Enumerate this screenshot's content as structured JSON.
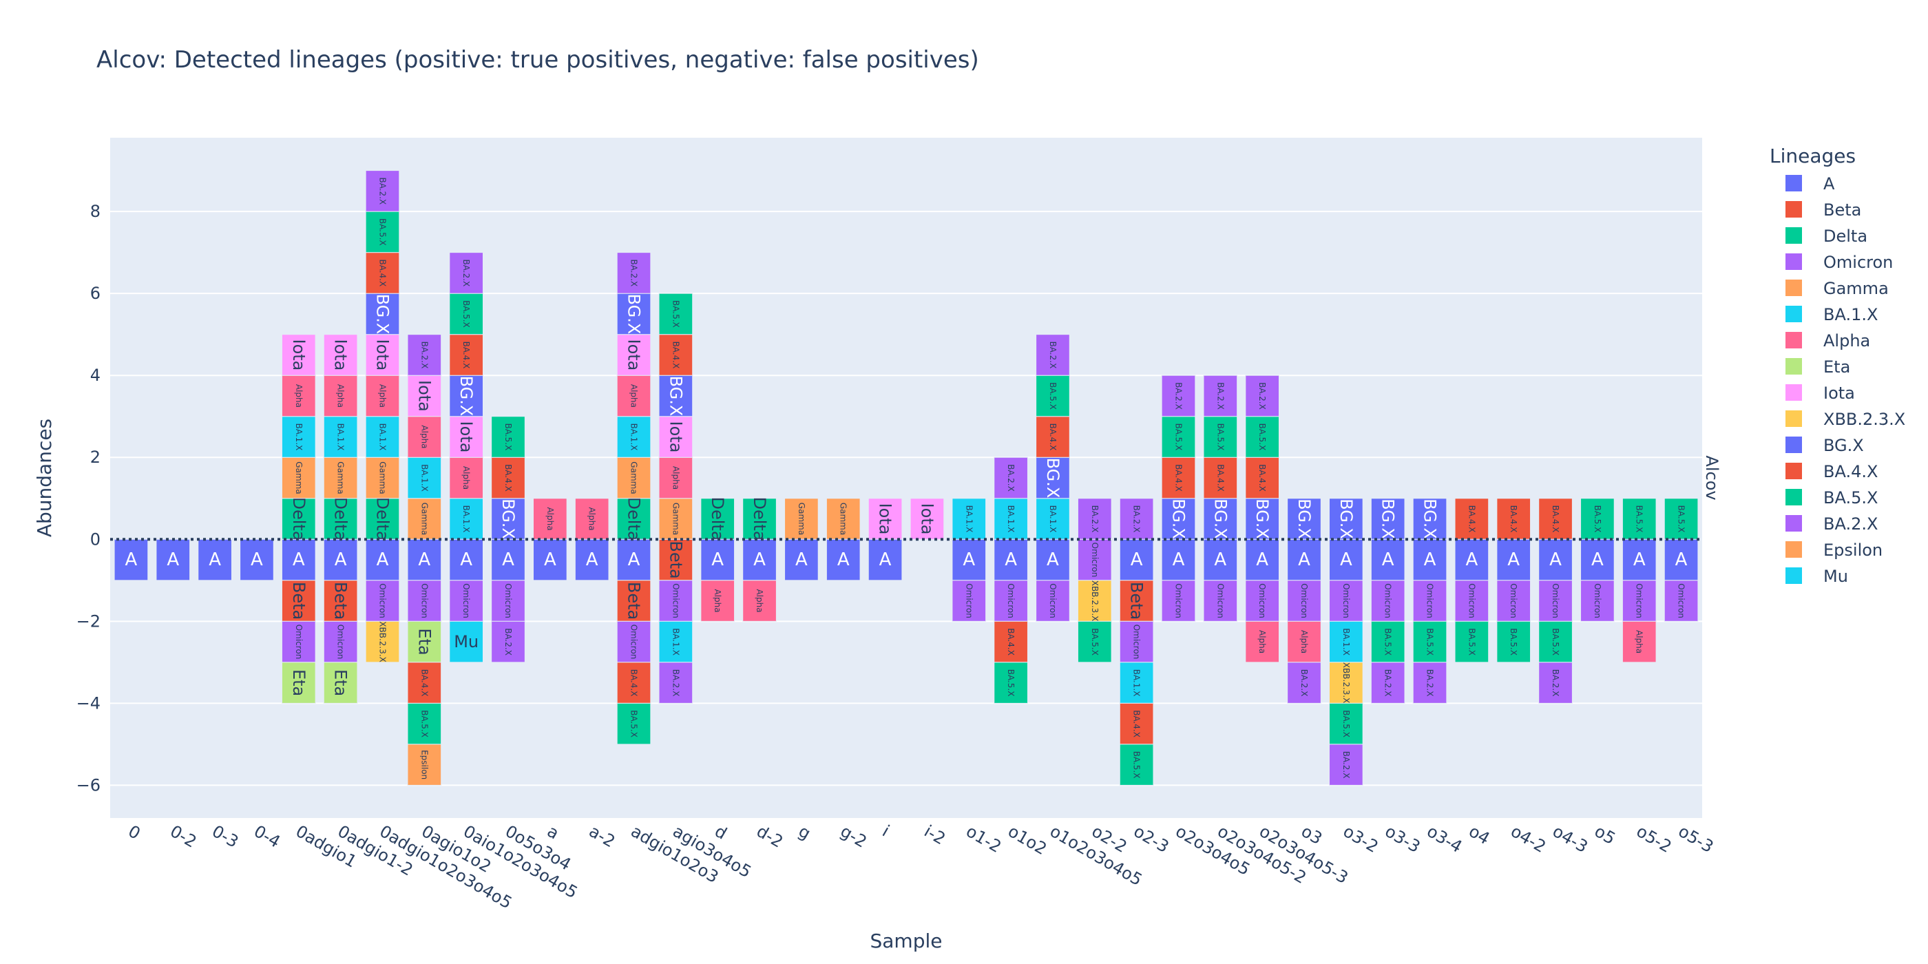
{
  "chart_data": {
    "type": "bar",
    "title": "Alcov: Detected lineages (positive: true positives, negative: false positives)",
    "xlabel": "Sample",
    "ylabel": "Abundances",
    "facet_label": "Alcov",
    "ylim": [
      -6.8,
      9.8
    ],
    "yticks": [
      -6,
      -4,
      -2,
      0,
      2,
      4,
      6,
      8
    ],
    "legend_title": "Lineages",
    "legend_placement": "right",
    "grid": true,
    "legend": [
      {
        "name": "A",
        "color": "#636efa"
      },
      {
        "name": "Beta",
        "color": "#EF553B"
      },
      {
        "name": "Delta",
        "color": "#00cc96"
      },
      {
        "name": "Omicron",
        "color": "#ab63fa"
      },
      {
        "name": "Gamma",
        "color": "#FFA15A"
      },
      {
        "name": "BA.1.X",
        "color": "#19d3f3"
      },
      {
        "name": "Alpha",
        "color": "#FF6692"
      },
      {
        "name": "Eta",
        "color": "#B6E880"
      },
      {
        "name": "Iota",
        "color": "#FF97FF"
      },
      {
        "name": "XBB.2.3.X",
        "color": "#FECB52"
      },
      {
        "name": "BG.X",
        "color": "#636efa"
      },
      {
        "name": "BA.4.X",
        "color": "#EF553B"
      },
      {
        "name": "BA.5.X",
        "color": "#00cc96"
      },
      {
        "name": "BA.2.X",
        "color": "#ab63fa"
      },
      {
        "name": "Epsilon",
        "color": "#FFA15A"
      },
      {
        "name": "Mu",
        "color": "#19d3f3"
      }
    ],
    "samples": [
      {
        "name": "0",
        "pos": [],
        "neg": [
          "A"
        ]
      },
      {
        "name": "0-2",
        "pos": [],
        "neg": [
          "A"
        ]
      },
      {
        "name": "0-3",
        "pos": [],
        "neg": [
          "A"
        ]
      },
      {
        "name": "0-4",
        "pos": [],
        "neg": [
          "A"
        ]
      },
      {
        "name": "0adgio1",
        "pos": [
          "Delta",
          "Gamma",
          "BA.1.X",
          "Alpha",
          "Iota"
        ],
        "neg": [
          "A",
          "Beta",
          "Omicron",
          "Eta"
        ]
      },
      {
        "name": "0adgio1-2",
        "pos": [
          "Delta",
          "Gamma",
          "BA.1.X",
          "Alpha",
          "Iota"
        ],
        "neg": [
          "A",
          "Beta",
          "Omicron",
          "Eta"
        ]
      },
      {
        "name": "0adgio1o2o3o4o5",
        "pos": [
          "Delta",
          "Gamma",
          "BA.1.X",
          "Alpha",
          "Iota",
          "BG.X",
          "BA.4.X",
          "BA.5.X",
          "BA.2.X"
        ],
        "neg": [
          "A",
          "Omicron",
          "XBB.2.3.X"
        ]
      },
      {
        "name": "0agio1o2",
        "pos": [
          "Gamma",
          "BA.1.X",
          "Alpha",
          "Iota",
          "BA.2.X"
        ],
        "neg": [
          "A",
          "Omicron",
          "Eta",
          "BA.4.X",
          "BA.5.X",
          "Epsilon"
        ]
      },
      {
        "name": "0aio1o2o3o4o5",
        "pos": [
          "BA.1.X",
          "Alpha",
          "Iota",
          "BG.X",
          "BA.4.X",
          "BA.5.X",
          "BA.2.X"
        ],
        "neg": [
          "A",
          "Omicron",
          "Mu"
        ]
      },
      {
        "name": "0o5o3o4",
        "pos": [
          "BG.X",
          "BA.4.X",
          "BA.5.X"
        ],
        "neg": [
          "A",
          "Omicron",
          "BA.2.X"
        ]
      },
      {
        "name": "a",
        "pos": [
          "Alpha"
        ],
        "neg": [
          "A"
        ]
      },
      {
        "name": "a-2",
        "pos": [
          "Alpha"
        ],
        "neg": [
          "A"
        ]
      },
      {
        "name": "adgio1o2o3",
        "pos": [
          "Delta",
          "Gamma",
          "BA.1.X",
          "Alpha",
          "Iota",
          "BG.X",
          "BA.2.X"
        ],
        "neg": [
          "A",
          "Beta",
          "Omicron",
          "BA.4.X",
          "BA.5.X"
        ]
      },
      {
        "name": "agio3o4o5",
        "pos": [
          "Gamma",
          "Alpha",
          "Iota",
          "BG.X",
          "BA.4.X",
          "BA.5.X"
        ],
        "neg": [
          "Beta",
          "Omicron",
          "BA.1.X",
          "BA.2.X"
        ]
      },
      {
        "name": "d",
        "pos": [
          "Delta"
        ],
        "neg": [
          "A",
          "Alpha"
        ]
      },
      {
        "name": "d-2",
        "pos": [
          "Delta"
        ],
        "neg": [
          "A",
          "Alpha"
        ]
      },
      {
        "name": "g",
        "pos": [
          "Gamma"
        ],
        "neg": [
          "A"
        ]
      },
      {
        "name": "g-2",
        "pos": [
          "Gamma"
        ],
        "neg": [
          "A"
        ]
      },
      {
        "name": "i",
        "pos": [
          "Iota"
        ],
        "neg": [
          "A"
        ]
      },
      {
        "name": "i-2",
        "pos": [
          "Iota"
        ],
        "neg": []
      },
      {
        "name": "o1-2",
        "pos": [
          "BA.1.X"
        ],
        "neg": [
          "A",
          "Omicron"
        ]
      },
      {
        "name": "o1o2",
        "pos": [
          "BA.1.X",
          "BA.2.X"
        ],
        "neg": [
          "A",
          "Omicron",
          "BA.4.X",
          "BA.5.X"
        ]
      },
      {
        "name": "o1o2o3o4o5",
        "pos": [
          "BA.1.X",
          "BG.X",
          "BA.4.X",
          "BA.5.X",
          "BA.2.X"
        ],
        "neg": [
          "A",
          "Omicron"
        ]
      },
      {
        "name": "o2-2",
        "pos": [
          "BA.2.X"
        ],
        "neg": [
          "Omicron",
          "XBB.2.3.X",
          "BA.5.X"
        ]
      },
      {
        "name": "o2-3",
        "pos": [
          "BA.2.X"
        ],
        "neg": [
          "A",
          "Beta",
          "Omicron",
          "BA.1.X",
          "BA.4.X",
          "BA.5.X"
        ]
      },
      {
        "name": "o2o3o4o5",
        "pos": [
          "BG.X",
          "BA.4.X",
          "BA.5.X",
          "BA.2.X"
        ],
        "neg": [
          "A",
          "Omicron"
        ]
      },
      {
        "name": "o2o3o4o5-2",
        "pos": [
          "BG.X",
          "BA.4.X",
          "BA.5.X",
          "BA.2.X"
        ],
        "neg": [
          "A",
          "Omicron"
        ]
      },
      {
        "name": "o2o3o4o5-3",
        "pos": [
          "BG.X",
          "BA.4.X",
          "BA.5.X",
          "BA.2.X"
        ],
        "neg": [
          "A",
          "Omicron",
          "Alpha"
        ]
      },
      {
        "name": "o3",
        "pos": [
          "BG.X"
        ],
        "neg": [
          "A",
          "Omicron",
          "Alpha",
          "BA.2.X"
        ]
      },
      {
        "name": "o3-2",
        "pos": [
          "BG.X"
        ],
        "neg": [
          "A",
          "Omicron",
          "BA.1.X",
          "XBB.2.3.X",
          "BA.5.X",
          "BA.2.X"
        ]
      },
      {
        "name": "o3-3",
        "pos": [
          "BG.X"
        ],
        "neg": [
          "A",
          "Omicron",
          "BA.5.X",
          "BA.2.X"
        ]
      },
      {
        "name": "o3-4",
        "pos": [
          "BG.X"
        ],
        "neg": [
          "A",
          "Omicron",
          "BA.5.X",
          "BA.2.X"
        ]
      },
      {
        "name": "o4",
        "pos": [
          "BA.4.X"
        ],
        "neg": [
          "A",
          "Omicron",
          "BA.5.X"
        ]
      },
      {
        "name": "o4-2",
        "pos": [
          "BA.4.X"
        ],
        "neg": [
          "A",
          "Omicron",
          "BA.5.X"
        ]
      },
      {
        "name": "o4-3",
        "pos": [
          "BA.4.X"
        ],
        "neg": [
          "A",
          "Omicron",
          "BA.5.X",
          "BA.2.X"
        ]
      },
      {
        "name": "o5",
        "pos": [
          "BA.5.X"
        ],
        "neg": [
          "A",
          "Omicron"
        ]
      },
      {
        "name": "o5-2",
        "pos": [
          "BA.5.X"
        ],
        "neg": [
          "A",
          "Omicron",
          "Alpha"
        ]
      },
      {
        "name": "o5-3",
        "pos": [
          "BA.5.X"
        ],
        "neg": [
          "A",
          "Omicron"
        ]
      }
    ]
  }
}
